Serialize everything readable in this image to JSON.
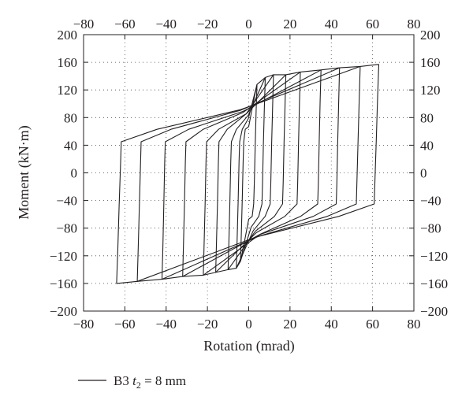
{
  "chart_data": {
    "type": "line",
    "xlabel": "Rotation (mrad)",
    "ylabel": "Moment (kN·m)",
    "xlim": [
      -80,
      80
    ],
    "ylim": [
      -200,
      200
    ],
    "x_ticks": [
      -80,
      -60,
      -40,
      -20,
      0,
      20,
      40,
      60,
      80
    ],
    "y_ticks": [
      -200,
      -160,
      -120,
      -80,
      -40,
      0,
      40,
      80,
      120,
      160,
      200
    ],
    "x_tick_labels": [
      "−80",
      "−60",
      "−40",
      "−20",
      "0",
      "20",
      "40",
      "60",
      "80"
    ],
    "y_tick_labels": [
      "−200",
      "−160",
      "−120",
      "−80",
      "−40",
      "0",
      "40",
      "80",
      "120",
      "160",
      "200"
    ],
    "grid": true,
    "mirrored_axes": true,
    "legend_position": "bottom-left",
    "line_color": "#231f20",
    "series": [
      {
        "name": "B3 t2 = 8 mm",
        "cycles": [
          {
            "peak_x": 4,
            "peak_y": 128,
            "min_x": -4,
            "min_y": -128
          },
          {
            "peak_x": 8,
            "peak_y": 138,
            "min_x": -6,
            "min_y": -138
          },
          {
            "peak_x": 12,
            "peak_y": 142,
            "min_x": -10,
            "min_y": -140
          },
          {
            "peak_x": 18,
            "peak_y": 142,
            "min_x": -16,
            "min_y": -144
          },
          {
            "peak_x": 25,
            "peak_y": 146,
            "min_x": -22,
            "min_y": -148
          },
          {
            "peak_x": 35,
            "peak_y": 149,
            "min_x": -32,
            "min_y": -150
          },
          {
            "peak_x": 44,
            "peak_y": 152,
            "min_x": -42,
            "min_y": -154
          },
          {
            "peak_x": 54,
            "peak_y": 154,
            "min_x": -54,
            "min_y": -157
          },
          {
            "peak_x": 63,
            "peak_y": 157,
            "min_x": -64,
            "min_y": -160
          }
        ]
      }
    ]
  },
  "legend": {
    "prefix": "B3 ",
    "var": "t",
    "sub": "2",
    "suffix": " = 8 mm"
  }
}
